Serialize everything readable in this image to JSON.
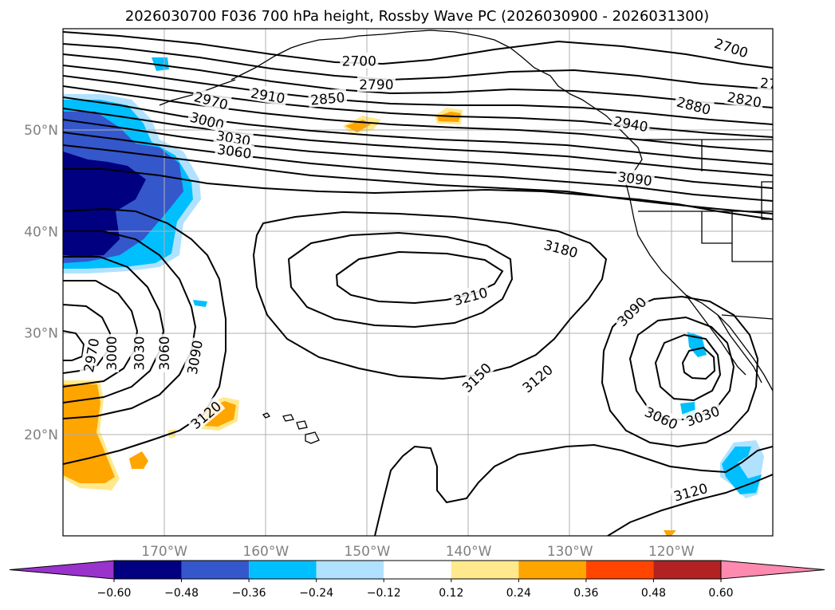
{
  "title": "2026030700 F036 700 hPa height, Rossby Wave PC (2026030900 - 2026031300)",
  "map": {
    "lon_range": [
      -180,
      -110
    ],
    "lat_range": [
      10,
      60
    ],
    "lat_ticks": [
      {
        "value": 50,
        "label": "50°N"
      },
      {
        "value": 40,
        "label": "40°N"
      },
      {
        "value": 30,
        "label": "30°N"
      },
      {
        "value": 20,
        "label": "20°N"
      }
    ],
    "lon_ticks": [
      {
        "value": -170,
        "label": "170°W"
      },
      {
        "value": -160,
        "label": "160°W"
      },
      {
        "value": -150,
        "label": "150°W"
      },
      {
        "value": -140,
        "label": "140°W"
      },
      {
        "value": -130,
        "label": "130°W"
      },
      {
        "value": -120,
        "label": "120°W"
      }
    ],
    "grid": true
  },
  "height_contours": {
    "labels": [
      {
        "text": "2700",
        "lon": -150.8,
        "lat": 56.8,
        "rot": 0
      },
      {
        "text": "2790",
        "lon": -149.1,
        "lat": 54.5,
        "rot": 0
      },
      {
        "text": "2850",
        "lon": -153.9,
        "lat": 53.1,
        "rot": -5
      },
      {
        "text": "2910",
        "lon": -159.8,
        "lat": 53.4,
        "rot": 10
      },
      {
        "text": "2970",
        "lon": -165.4,
        "lat": 52.9,
        "rot": 15
      },
      {
        "text": "3000",
        "lon": -165.8,
        "lat": 50.9,
        "rot": 15
      },
      {
        "text": "3030",
        "lon": -163.2,
        "lat": 49.2,
        "rot": 10
      },
      {
        "text": "3060",
        "lon": -163.1,
        "lat": 47.9,
        "rot": 8
      },
      {
        "text": "2700",
        "lon": -114.1,
        "lat": 58.1,
        "rot": 18
      },
      {
        "text": "2880",
        "lon": -117.8,
        "lat": 52.4,
        "rot": 15
      },
      {
        "text": "2820",
        "lon": -112.8,
        "lat": 53.0,
        "rot": 10
      },
      {
        "text": "27",
        "lon": -110.4,
        "lat": 54.6,
        "rot": 5
      },
      {
        "text": "2940",
        "lon": -124.0,
        "lat": 50.6,
        "rot": 10
      },
      {
        "text": "3090",
        "lon": -123.6,
        "lat": 45.2,
        "rot": 8
      },
      {
        "text": "3180",
        "lon": -130.9,
        "lat": 38.3,
        "rot": 15
      },
      {
        "text": "3210",
        "lon": -139.8,
        "lat": 33.6,
        "rot": -15
      },
      {
        "text": "3150",
        "lon": -139.2,
        "lat": 25.6,
        "rot": -45
      },
      {
        "text": "3120",
        "lon": -133.2,
        "lat": 25.5,
        "rot": -40
      },
      {
        "text": "3090",
        "lon": -123.9,
        "lat": 32.1,
        "rot": -45
      },
      {
        "text": "3030",
        "lon": -116.9,
        "lat": 21.8,
        "rot": -20
      },
      {
        "text": "3060",
        "lon": -121.0,
        "lat": 21.6,
        "rot": 25
      },
      {
        "text": "3120",
        "lon": -118.1,
        "lat": 14.3,
        "rot": -15
      },
      {
        "text": "2970",
        "lon": -177.2,
        "lat": 27.8,
        "rot": -80
      },
      {
        "text": "3000",
        "lon": -175.2,
        "lat": 28.0,
        "rot": -90
      },
      {
        "text": "3030",
        "lon": -172.5,
        "lat": 28.0,
        "rot": -90
      },
      {
        "text": "3060",
        "lon": -170.0,
        "lat": 28.0,
        "rot": -90
      },
      {
        "text": "3090",
        "lon": -167.0,
        "lat": 27.6,
        "rot": -80
      },
      {
        "text": "3120",
        "lon": -165.9,
        "lat": 21.9,
        "rot": -40
      }
    ]
  },
  "colorbar": {
    "ticks": [
      "−0.60",
      "−0.48",
      "−0.36",
      "−0.24",
      "−0.12",
      "0.12",
      "0.24",
      "0.36",
      "0.48",
      "0.60"
    ],
    "colors": [
      "#9933cc",
      "#000080",
      "#3557cc",
      "#00bfff",
      "#b0e2ff",
      "#ffffff",
      "#ffe98c",
      "#ffa500",
      "#ff4500",
      "#b22222",
      "#ff8ab0"
    ]
  }
}
